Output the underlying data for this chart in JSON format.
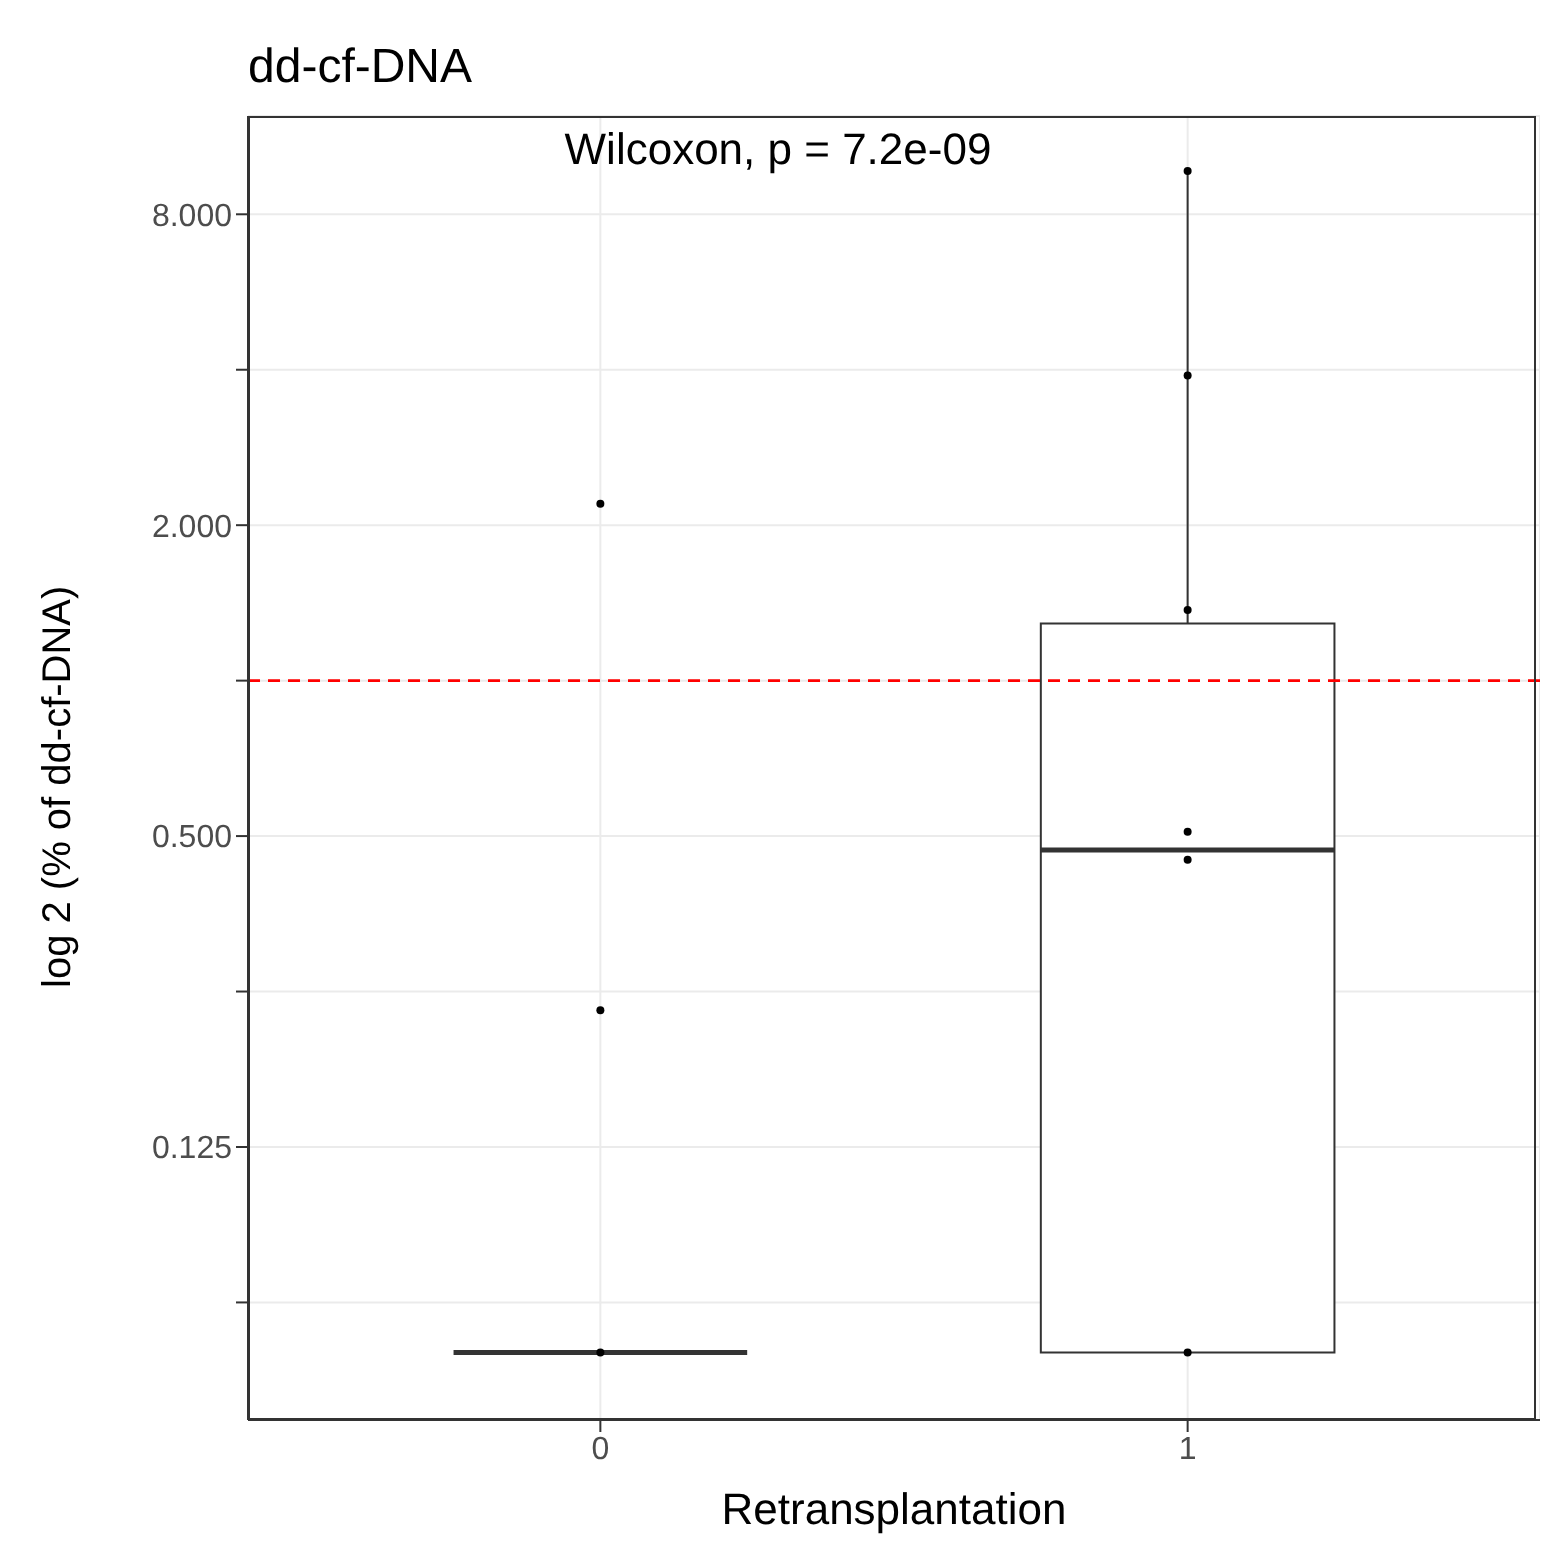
{
  "chart_data": {
    "type": "box",
    "title": "dd-cf-DNA",
    "xlabel": "Retransplantation",
    "ylabel": "log 2 (% of dd-cf-DNA)",
    "annotations": [
      "Wilcoxon, p = 7.2e-09"
    ],
    "categories": [
      "0",
      "1"
    ],
    "log": "y",
    "ylim": [
      0.037,
      12.4
    ],
    "yticks": [
      {
        "value": 0.0625,
        "label": null
      },
      {
        "value": 0.125,
        "label": "0.125"
      },
      {
        "value": 0.25,
        "label": null
      },
      {
        "value": 0.5,
        "label": "0.500"
      },
      {
        "value": 1,
        "label": null
      },
      {
        "value": 2,
        "label": "2.000"
      },
      {
        "value": 4,
        "label": null
      },
      {
        "value": 8,
        "label": "8.000"
      }
    ],
    "grid": true,
    "boxes": [
      {
        "low": 0.05,
        "q1": 0.05,
        "median": 0.05,
        "q3": 0.05,
        "high": 0.05
      },
      {
        "low": 0.05,
        "q1": 0.05,
        "median": 0.47,
        "q3": 1.29,
        "high": 9.7
      }
    ],
    "series": [
      {
        "type": "scatter",
        "color": "#000000",
        "marker": "circle",
        "x": [
          "0",
          "0",
          "0",
          "1",
          "1",
          "1",
          "1",
          "1",
          "1"
        ],
        "values": [
          2.2,
          0.23,
          0.05,
          9.7,
          3.9,
          1.37,
          0.51,
          0.45,
          0.05
        ]
      }
    ],
    "color": "#333333",
    "ref_lines": [
      {
        "axis": "y",
        "value": 1,
        "color": "#ff0000",
        "line_style": "dashed"
      }
    ],
    "legend": false
  }
}
